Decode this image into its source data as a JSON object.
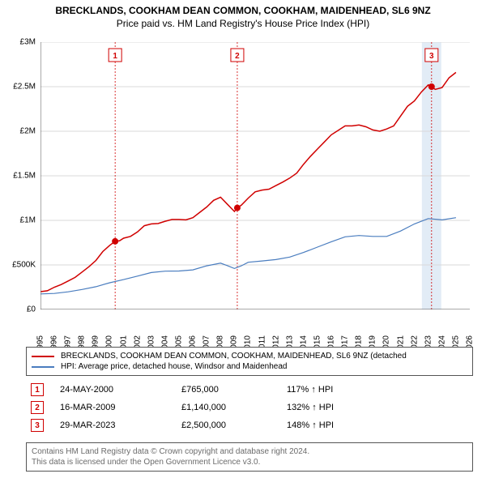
{
  "title": {
    "line1": "BRECKLANDS, COOKHAM DEAN COMMON, COOKHAM, MAIDENHEAD, SL6 9NZ",
    "line2": "Price paid vs. HM Land Registry's House Price Index (HPI)"
  },
  "chart": {
    "background_color": "#ffffff",
    "grid_color": "#d9d9d9",
    "axis_color": "#555555",
    "ylim": [
      0,
      3000000
    ],
    "yticks": [
      {
        "v": 0,
        "label": "£0"
      },
      {
        "v": 500000,
        "label": "£500K"
      },
      {
        "v": 1000000,
        "label": "£1M"
      },
      {
        "v": 1500000,
        "label": "£1.5M"
      },
      {
        "v": 2000000,
        "label": "£2M"
      },
      {
        "v": 2500000,
        "label": "£2.5M"
      },
      {
        "v": 3000000,
        "label": "£3M"
      }
    ],
    "xlim": [
      1995,
      2026
    ],
    "xticks": [
      1995,
      1996,
      1997,
      1998,
      1999,
      2000,
      2001,
      2002,
      2003,
      2004,
      2005,
      2006,
      2007,
      2008,
      2009,
      2010,
      2011,
      2012,
      2013,
      2014,
      2015,
      2016,
      2017,
      2018,
      2019,
      2020,
      2021,
      2022,
      2023,
      2024,
      2025,
      2026
    ],
    "marker_line_color": "#d00000",
    "marker_box_bg": "#ffffff",
    "marker_box_border": "#d00000",
    "marker_text_color": "#d00000",
    "marker_highlight_fill": "#d6e4f2",
    "series": [
      {
        "id": "price_paid",
        "color": "#d00000",
        "width": 1.5,
        "points": [
          [
            1995,
            200000
          ],
          [
            1995.5,
            210000
          ],
          [
            1996,
            250000
          ],
          [
            1996.5,
            280000
          ],
          [
            1997,
            320000
          ],
          [
            1997.5,
            360000
          ],
          [
            1998,
            420000
          ],
          [
            1998.5,
            480000
          ],
          [
            1999,
            550000
          ],
          [
            1999.5,
            650000
          ],
          [
            2000,
            720000
          ],
          [
            2000.39,
            765000
          ],
          [
            2000.7,
            770000
          ],
          [
            2001,
            800000
          ],
          [
            2001.5,
            820000
          ],
          [
            2002,
            870000
          ],
          [
            2002.5,
            940000
          ],
          [
            2003,
            960000
          ],
          [
            2003.5,
            965000
          ],
          [
            2004,
            990000
          ],
          [
            2004.5,
            1010000
          ],
          [
            2005,
            1010000
          ],
          [
            2005.5,
            1005000
          ],
          [
            2006,
            1030000
          ],
          [
            2006.5,
            1090000
          ],
          [
            2007,
            1150000
          ],
          [
            2007.5,
            1225000
          ],
          [
            2008,
            1260000
          ],
          [
            2008.5,
            1180000
          ],
          [
            2009,
            1100000
          ],
          [
            2009.21,
            1140000
          ],
          [
            2009.5,
            1170000
          ],
          [
            2010,
            1250000
          ],
          [
            2010.5,
            1320000
          ],
          [
            2011,
            1340000
          ],
          [
            2011.5,
            1350000
          ],
          [
            2012,
            1390000
          ],
          [
            2012.5,
            1430000
          ],
          [
            2013,
            1475000
          ],
          [
            2013.5,
            1530000
          ],
          [
            2014,
            1630000
          ],
          [
            2014.5,
            1720000
          ],
          [
            2015,
            1800000
          ],
          [
            2015.5,
            1880000
          ],
          [
            2016,
            1960000
          ],
          [
            2016.5,
            2010000
          ],
          [
            2017,
            2060000
          ],
          [
            2017.5,
            2060000
          ],
          [
            2018,
            2070000
          ],
          [
            2018.5,
            2050000
          ],
          [
            2019,
            2015000
          ],
          [
            2019.5,
            2000000
          ],
          [
            2020,
            2025000
          ],
          [
            2020.5,
            2060000
          ],
          [
            2021,
            2170000
          ],
          [
            2021.5,
            2280000
          ],
          [
            2022,
            2340000
          ],
          [
            2022.5,
            2440000
          ],
          [
            2023,
            2520000
          ],
          [
            2023.24,
            2500000
          ],
          [
            2023.5,
            2470000
          ],
          [
            2024,
            2490000
          ],
          [
            2024.5,
            2600000
          ],
          [
            2025,
            2660000
          ]
        ]
      },
      {
        "id": "hpi",
        "color": "#4a7dbf",
        "width": 1.2,
        "points": [
          [
            1995,
            175000
          ],
          [
            1996,
            180000
          ],
          [
            1997,
            198000
          ],
          [
            1998,
            225000
          ],
          [
            1999,
            255000
          ],
          [
            2000,
            300000
          ],
          [
            2001,
            335000
          ],
          [
            2002,
            375000
          ],
          [
            2003,
            415000
          ],
          [
            2004,
            430000
          ],
          [
            2005,
            432000
          ],
          [
            2006,
            445000
          ],
          [
            2007,
            490000
          ],
          [
            2008,
            520000
          ],
          [
            2008.5,
            492000
          ],
          [
            2009,
            460000
          ],
          [
            2009.5,
            490000
          ],
          [
            2010,
            530000
          ],
          [
            2011,
            545000
          ],
          [
            2012,
            560000
          ],
          [
            2013,
            588000
          ],
          [
            2014,
            640000
          ],
          [
            2015,
            700000
          ],
          [
            2016,
            760000
          ],
          [
            2017,
            815000
          ],
          [
            2018,
            830000
          ],
          [
            2019,
            820000
          ],
          [
            2020,
            820000
          ],
          [
            2021,
            880000
          ],
          [
            2022,
            960000
          ],
          [
            2023,
            1020000
          ],
          [
            2024,
            1005000
          ],
          [
            2025,
            1030000
          ]
        ]
      }
    ],
    "markers": [
      {
        "n": "1",
        "x": 2000.39,
        "y": 765000,
        "date": "24-MAY-2000",
        "price": "£765,000",
        "vs": "117% ↑ HPI"
      },
      {
        "n": "2",
        "x": 2009.21,
        "y": 1140000,
        "date": "16-MAR-2009",
        "price": "£1,140,000",
        "vs": "132% ↑ HPI"
      },
      {
        "n": "3",
        "x": 2023.24,
        "y": 2500000,
        "date": "29-MAR-2023",
        "price": "£2,500,000",
        "vs": "148% ↑ HPI"
      }
    ]
  },
  "legend": {
    "rows": [
      {
        "color": "#d00000",
        "label": "BRECKLANDS, COOKHAM DEAN COMMON, COOKHAM, MAIDENHEAD, SL6 9NZ (detached"
      },
      {
        "color": "#4a7dbf",
        "label": "HPI: Average price, detached house, Windsor and Maidenhead"
      }
    ]
  },
  "attribution": {
    "line1": "Contains HM Land Registry data © Crown copyright and database right 2024.",
    "line2": "This data is licensed under the Open Government Licence v3.0."
  }
}
